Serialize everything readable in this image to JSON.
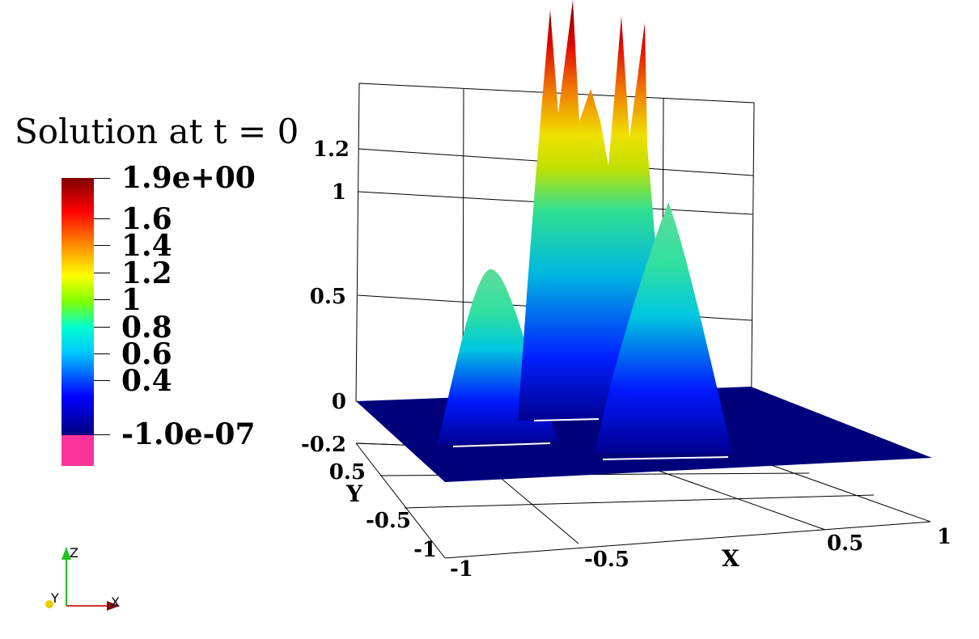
{
  "title": "Solution at t = 0",
  "colorbar": {
    "max_label": "1.9e+00",
    "min_label": "-1.0e-07",
    "labels": [
      "1.6",
      "1.4",
      "1.2",
      "1",
      "0.8",
      "0.6",
      "0.4"
    ],
    "nan_color": "#ff3399"
  },
  "axes": {
    "z_ticks": [
      "1.2",
      "1",
      "0.5",
      "0",
      "-0.2"
    ],
    "y_ticks": [
      "0.5",
      "-0.5",
      "-1"
    ],
    "x_ticks": [
      "-1",
      "-0.5",
      "0.5",
      "1"
    ],
    "x_title": "X",
    "y_title": "Y"
  },
  "orientation_triad": {
    "x": "X",
    "y": "Y",
    "z": "Z"
  }
}
